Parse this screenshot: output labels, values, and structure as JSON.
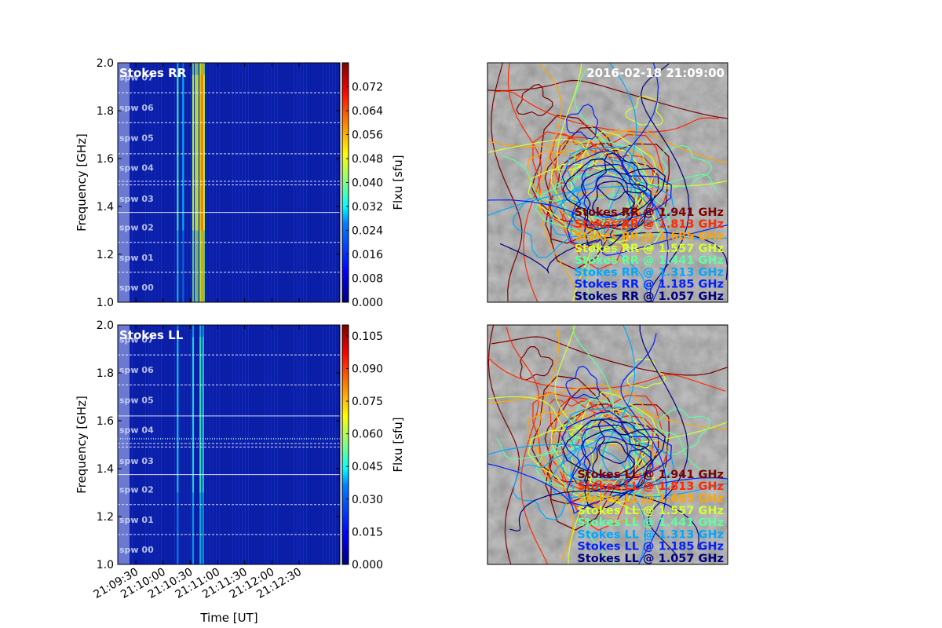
{
  "date_label": "2016-02-18 21:09:00",
  "colors": {
    "spectrogram_bg": "#0b1ea8",
    "time_axis_shade": "#7d8ad8",
    "map_bg": "#8c8c8c",
    "colormap": [
      "#00007f",
      "#0000ff",
      "#0080ff",
      "#00ffff",
      "#80ff80",
      "#ffff00",
      "#ff8000",
      "#ff0000",
      "#7f0000"
    ]
  },
  "spw_labels": [
    "spw 00",
    "spw 01",
    "spw 02",
    "spw 03",
    "spw 04",
    "spw 05",
    "spw 06",
    "spw 07"
  ],
  "spw_boundaries_ghz": [
    1.125,
    1.25,
    1.375,
    1.49,
    1.505,
    1.62,
    1.75,
    1.875
  ],
  "contour_sets": {
    "rr": [
      {
        "label": "Stokes RR @ 1.941 GHz",
        "color": "#7f0000"
      },
      {
        "label": "Stokes RR @ 1.813 GHz",
        "color": "#ff2a00"
      },
      {
        "label": "Stokes RR @ 1.685 GHz",
        "color": "#ffa500"
      },
      {
        "label": "Stokes RR @ 1.557 GHz",
        "color": "#d6ff2e"
      },
      {
        "label": "Stokes RR @ 1.441 GHz",
        "color": "#5effa0"
      },
      {
        "label": "Stokes RR @ 1.313 GHz",
        "color": "#00a8ff"
      },
      {
        "label": "Stokes RR @ 1.185 GHz",
        "color": "#0020ff"
      },
      {
        "label": "Stokes RR @ 1.057 GHz",
        "color": "#00007f"
      }
    ],
    "ll": [
      {
        "label": "Stokes LL @ 1.941 GHz",
        "color": "#7f0000"
      },
      {
        "label": "Stokes LL @ 1.813 GHz",
        "color": "#ff2a00"
      },
      {
        "label": "Stokes LL @ 1.685 GHz",
        "color": "#ffa500"
      },
      {
        "label": "Stokes LL @ 1.557 GHz",
        "color": "#d6ff2e"
      },
      {
        "label": "Stokes LL @ 1.441 GHz",
        "color": "#5effa0"
      },
      {
        "label": "Stokes LL @ 1.313 GHz",
        "color": "#00a8ff"
      },
      {
        "label": "Stokes LL @ 1.185 GHz",
        "color": "#0020ff"
      },
      {
        "label": "Stokes LL @ 1.057 GHz",
        "color": "#00007f"
      }
    ]
  },
  "chart_data": [
    {
      "type": "heatmap",
      "title": "Stokes RR",
      "xlabel": "",
      "ylabel": "Frequency [GHz]",
      "ylim": [
        1.0,
        2.0
      ],
      "yticks": [
        "1.0",
        "1.2",
        "1.4",
        "1.6",
        "1.8",
        "2.0"
      ],
      "xticks": [],
      "x_range": [
        "21:09:10",
        "21:13:15"
      ],
      "colorbar_label": "Flxu [sfu]",
      "colorbar_range": [
        0.0,
        0.08
      ],
      "colorbar_ticks": [
        "0.000",
        "0.008",
        "0.016",
        "0.024",
        "0.032",
        "0.040",
        "0.048",
        "0.056",
        "0.064",
        "0.072"
      ],
      "bright_bands": [
        {
          "time": "21:10:16",
          "intensity": 0.35
        },
        {
          "time": "21:10:22",
          "intensity": 0.2
        },
        {
          "time": "21:10:33",
          "intensity": 0.55
        },
        {
          "time": "21:10:36",
          "intensity": 0.7
        },
        {
          "time": "21:10:38",
          "intensity": 0.5
        },
        {
          "time": "21:10:41",
          "intensity": 0.8
        },
        {
          "time": "21:10:43",
          "intensity": 0.95
        },
        {
          "time": "21:10:45",
          "intensity": 0.6
        }
      ]
    },
    {
      "type": "heatmap",
      "title": "Stokes LL",
      "xlabel": "Time [UT]",
      "ylabel": "Frequency [GHz]",
      "ylim": [
        1.0,
        2.0
      ],
      "yticks": [
        "1.0",
        "1.2",
        "1.4",
        "1.6",
        "1.8",
        "2.0"
      ],
      "xticks": [
        "21:09:30",
        "21:10:00",
        "21:10:30",
        "21:11:00",
        "21:11:30",
        "21:12:00",
        "21:12:30"
      ],
      "x_range": [
        "21:09:10",
        "21:13:15"
      ],
      "colorbar_label": "Flxu [sfu]",
      "colorbar_range": [
        0.0,
        0.11
      ],
      "colorbar_ticks": [
        "0.000",
        "0.015",
        "0.030",
        "0.045",
        "0.060",
        "0.075",
        "0.090",
        "0.105"
      ],
      "bright_bands": [
        {
          "time": "21:10:16",
          "intensity": 0.25
        },
        {
          "time": "21:10:33",
          "intensity": 0.3
        },
        {
          "time": "21:10:41",
          "intensity": 0.35
        },
        {
          "time": "21:10:44",
          "intensity": 0.3
        }
      ]
    }
  ]
}
